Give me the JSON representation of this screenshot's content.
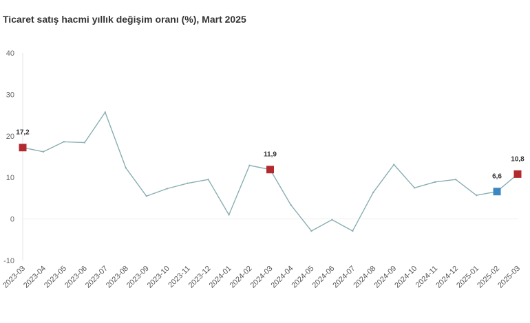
{
  "title": "Ticaret satış hacmi yıllık değişim oranı (%), Mart 2025",
  "colors": {
    "line": "#88aeb2",
    "highlight_red": "#b22a2e",
    "highlight_blue": "#3b87c2",
    "grid": "#eeeeee"
  },
  "chart_data": {
    "type": "line",
    "title": "Ticaret satış hacmi yıllık değişim oranı (%), Mart 2025",
    "xlabel": "",
    "ylabel": "",
    "ylim": [
      -10,
      40
    ],
    "yticks": [
      -10,
      0,
      10,
      20,
      30,
      40
    ],
    "grid": false,
    "categories": [
      "2023-03",
      "2023-04",
      "2023-05",
      "2023-06",
      "2023-07",
      "2023-08",
      "2023-09",
      "2023-10",
      "2023-11",
      "2023-12",
      "2024-01",
      "2024-02",
      "2024-03",
      "2024-04",
      "2024-05",
      "2024-06",
      "2024-07",
      "2024-08",
      "2024-09",
      "2024-10",
      "2024-11",
      "2024-12",
      "2025-01",
      "2025-02",
      "2025-03"
    ],
    "series": [
      {
        "values": [
          17.2,
          16.2,
          18.6,
          18.4,
          25.7,
          12.3,
          5.5,
          7.3,
          8.6,
          9.5,
          1.0,
          12.9,
          11.9,
          3.4,
          -2.9,
          -0.2,
          -2.9,
          6.4,
          13.1,
          7.5,
          8.9,
          9.5,
          5.7,
          6.6,
          10.8
        ]
      }
    ],
    "highlights": [
      {
        "index": 0,
        "label": "17,2",
        "color": "red"
      },
      {
        "index": 12,
        "label": "11,9",
        "color": "red"
      },
      {
        "index": 23,
        "label": "6,6",
        "color": "blue"
      },
      {
        "index": 24,
        "label": "10,8",
        "color": "red"
      }
    ]
  }
}
